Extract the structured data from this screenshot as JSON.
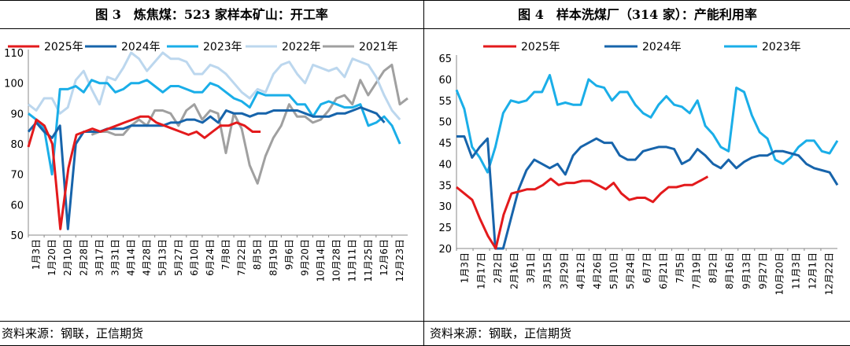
{
  "panels": [
    {
      "title": "图 3　炼焦煤：523 家样本矿山：开工率",
      "source": "资料来源：钢联，正信期货"
    },
    {
      "title": "图 4　样本洗煤厂（314 家）：产能利用率",
      "source": "资料来源：钢联，正信期货"
    }
  ],
  "chart_data": [
    {
      "type": "line",
      "title": "",
      "xlabel": "",
      "ylabel": "",
      "ylim": [
        50,
        110
      ],
      "yticks": [
        50,
        60,
        70,
        80,
        90,
        100,
        110
      ],
      "x_ticks": [
        "1月3日",
        "1月20日",
        "2月10日",
        "2月28日",
        "3月17日",
        "3月31日",
        "4月14日",
        "4月28日",
        "5月13日",
        "5月27日",
        "6月10日",
        "6月24日",
        "7月8日",
        "7月22日",
        "8月5日",
        "8月19日",
        "9月6日",
        "9月20日",
        "10月14日",
        "10月28日",
        "11月11日",
        "11月25日",
        "12月6日",
        "12月23日"
      ],
      "legend_position": "top",
      "grid": false,
      "series": [
        {
          "name": "2025年",
          "color": "#e31a1c",
          "values": [
            79,
            88,
            86,
            80,
            52,
            72,
            83,
            84,
            85,
            84,
            85,
            86,
            87,
            88,
            89,
            89,
            87,
            86,
            85,
            84,
            83,
            84,
            82,
            84,
            86,
            86,
            87,
            86,
            84,
            84
          ]
        },
        {
          "name": "2024年",
          "color": "#1764ab",
          "values": [
            84,
            87,
            84,
            82,
            86,
            52,
            80,
            84,
            84,
            84,
            85,
            85,
            85,
            86,
            86,
            86,
            86,
            86,
            87,
            87,
            88,
            88,
            87,
            89,
            87,
            91,
            90,
            90,
            89,
            90,
            90,
            91,
            91,
            91,
            91,
            90,
            89,
            89,
            89,
            90,
            90,
            91,
            92,
            91,
            90,
            87
          ]
        },
        {
          "name": "2023年",
          "color": "#1aaee8",
          "values": [
            90,
            88,
            85,
            70,
            98,
            98,
            99,
            97,
            101,
            100,
            100,
            97,
            98,
            100,
            100,
            101,
            99,
            97,
            99,
            99,
            98,
            97,
            97,
            100,
            99,
            97,
            95,
            94,
            92,
            97,
            96,
            96,
            96,
            96,
            93,
            93,
            89,
            93,
            94,
            93,
            92,
            92,
            93,
            86,
            87,
            89,
            86,
            80
          ]
        },
        {
          "name": "2022年",
          "color": "#bcd7ee",
          "values": [
            93,
            91,
            95,
            95,
            90,
            92,
            101,
            104,
            98,
            93,
            102,
            101,
            105,
            110,
            108,
            104,
            107,
            110,
            108,
            108,
            107,
            103,
            103,
            106,
            105,
            103,
            100,
            97,
            95,
            98,
            97,
            103,
            106,
            107,
            103,
            100,
            106,
            105,
            104,
            105,
            102,
            108,
            107,
            106,
            102,
            96,
            91,
            88
          ]
        },
        {
          "name": "2021年",
          "color": "#a0a0a0",
          "values": [
            null,
            null,
            null,
            null,
            null,
            null,
            null,
            null,
            83,
            84,
            84,
            83,
            83,
            86,
            88,
            86,
            91,
            91,
            90,
            86,
            91,
            93,
            88,
            91,
            90,
            77,
            90,
            85,
            73,
            67,
            76,
            82,
            86,
            93,
            89,
            89,
            87,
            88,
            91,
            95,
            96,
            93,
            101,
            96,
            100,
            104,
            106,
            93,
            95
          ]
        }
      ]
    },
    {
      "type": "line",
      "title": "",
      "xlabel": "",
      "ylabel": "",
      "ylim": [
        20,
        65
      ],
      "yticks": [
        20,
        25,
        30,
        35,
        40,
        45,
        50,
        55,
        60,
        65
      ],
      "x_ticks": [
        "1月3日",
        "1月17日",
        "2月2日",
        "2月16日",
        "3月1日",
        "3月15日",
        "3月29日",
        "4月12日",
        "4月26日",
        "5月10日",
        "5月24日",
        "6月7日",
        "6月21日",
        "7月5日",
        "7月19日",
        "8月2日",
        "8月16日",
        "9月13日",
        "9月27日",
        "10月20日",
        "11月3日",
        "12月1日",
        "12月22日"
      ],
      "legend_position": "top",
      "grid": false,
      "series": [
        {
          "name": "2025年",
          "color": "#e31a1c",
          "values": [
            34.5,
            33,
            31.5,
            27,
            23,
            20,
            28,
            33,
            33.5,
            34,
            34,
            35,
            36.5,
            35,
            35.5,
            35.5,
            36,
            36,
            35,
            34,
            35.5,
            33,
            31.5,
            32,
            32,
            31,
            33,
            34.5,
            34.5,
            35,
            35,
            36,
            37
          ]
        },
        {
          "name": "2024年",
          "color": "#1764ab",
          "values": [
            46.5,
            46.5,
            41.5,
            44,
            46,
            20,
            20,
            27,
            34,
            38.5,
            41,
            40,
            39,
            40,
            37.5,
            42,
            44,
            45,
            46,
            45,
            45,
            42,
            41,
            41,
            43,
            43.5,
            44,
            44,
            43.5,
            40,
            41,
            43.5,
            42,
            40,
            39,
            41,
            39,
            40.5,
            41.5,
            42,
            42,
            43,
            43,
            42.5,
            42,
            40,
            39,
            38.5,
            38,
            35
          ]
        },
        {
          "name": "2023年",
          "color": "#1aaee8",
          "values": [
            57.5,
            53,
            44,
            41.5,
            38,
            44,
            52,
            55,
            54.5,
            55,
            57,
            57,
            61,
            54,
            54.5,
            54,
            54,
            60,
            58.5,
            58,
            55,
            57,
            57,
            54,
            52,
            51,
            54,
            56,
            54,
            53.5,
            52,
            55,
            49,
            47,
            44,
            43,
            58,
            57,
            51.5,
            47.5,
            46,
            41,
            40,
            41.5,
            44,
            45.5,
            45.5,
            43,
            42.5,
            45.5
          ]
        }
      ]
    }
  ]
}
